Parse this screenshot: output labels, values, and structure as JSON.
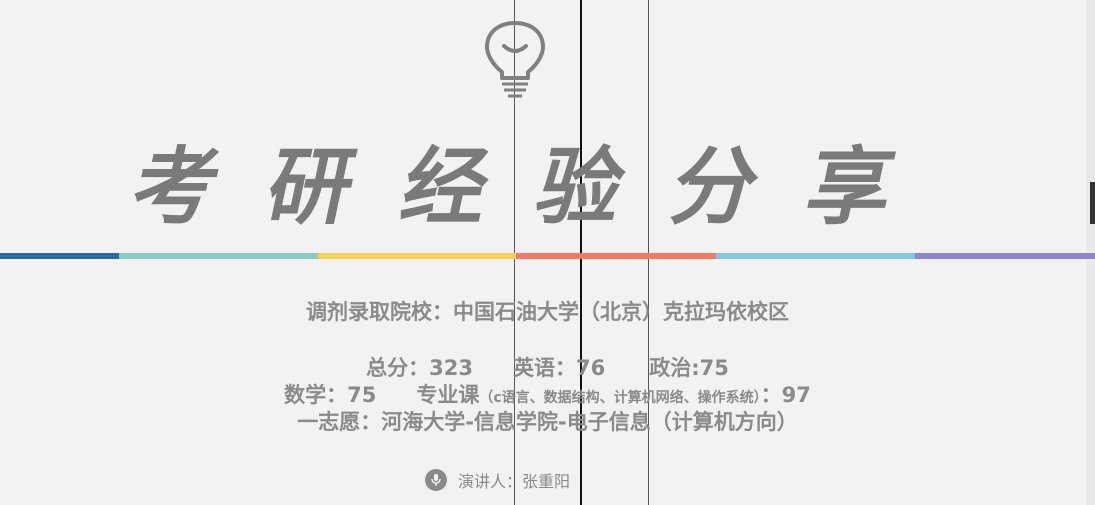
{
  "slide": {
    "title_chars": [
      "考",
      "研",
      "经",
      "验",
      "分",
      "享"
    ],
    "stripe_colors": [
      "#2a6aa6",
      "#86cdbf",
      "#f6cf5b",
      "#f27a64",
      "#86c8ea",
      "#8d86cc"
    ],
    "school_line": "调剂录取院校：中国石油大学（北京）克拉玛依校区",
    "scores": {
      "total": "总分：323",
      "english": "英语：76",
      "politics": "政治:75",
      "math": "数学：75",
      "major_label": "专业课",
      "major_detail": "（c语言、数据结构、计算机网络、操作系统）",
      "major_score": "：97"
    },
    "first_choice": "一志愿：河海大学-信息学院-电子信息（计算机方向）",
    "speaker": "演讲人：张重阳",
    "icons": [
      "lightbulb-icon",
      "microphone-icon"
    ]
  }
}
